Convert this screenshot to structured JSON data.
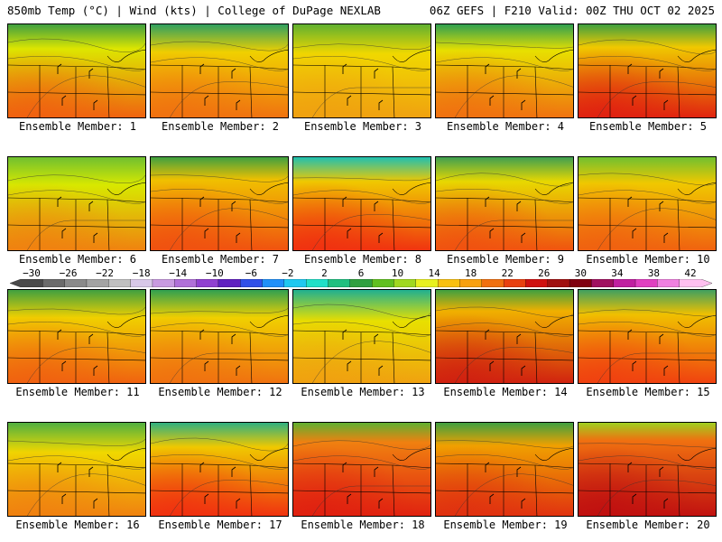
{
  "header": {
    "left": "850mb Temp (°C) | Wind (kts) | College of DuPage NEXLAB",
    "right": "06Z GEFS | F210 Valid: 00Z THU OCT 02 2025"
  },
  "colorbar": {
    "ticks": [
      "−30",
      "−26",
      "−22",
      "−18",
      "−14",
      "−10",
      "−6",
      "−2",
      "2",
      "6",
      "10",
      "14",
      "18",
      "22",
      "26",
      "30",
      "34",
      "38",
      "42"
    ],
    "colors": [
      "#4a4a4a",
      "#6b6b6b",
      "#8a8a8a",
      "#a3a3a3",
      "#c0c0c0",
      "#d8c8e8",
      "#c89ae0",
      "#b070d8",
      "#9040d0",
      "#6020c0",
      "#3050e8",
      "#2090f8",
      "#20c8f0",
      "#20e0c8",
      "#20c080",
      "#30a040",
      "#60c020",
      "#a0d820",
      "#e8f020",
      "#f8c010",
      "#f8a010",
      "#f07010",
      "#e84010",
      "#d01010",
      "#a01010",
      "#800010",
      "#a01060",
      "#c020a0",
      "#e040c0",
      "#f080e0",
      "#ffc0f0"
    ]
  },
  "members": [
    {
      "label": "Ensemble Member: 1",
      "warmth": 0.55,
      "bg": "#dde600",
      "hot": "#f06010",
      "cool": "#40a040"
    },
    {
      "label": "Ensemble Member: 2",
      "warmth": 0.45,
      "bg": "#f0d000",
      "hot": "#f07010",
      "cool": "#30a060"
    },
    {
      "label": "Ensemble Member: 3",
      "warmth": 0.4,
      "bg": "#f0d800",
      "hot": "#f0a010",
      "cool": "#60b030"
    },
    {
      "label": "Ensemble Member: 4",
      "warmth": 0.5,
      "bg": "#e8e000",
      "hot": "#f07010",
      "cool": "#30a050"
    },
    {
      "label": "Ensemble Member: 5",
      "warmth": 0.6,
      "bg": "#f0c800",
      "hot": "#e02010",
      "cool": "#40a040"
    },
    {
      "label": "Ensemble Member: 6",
      "warmth": 0.45,
      "bg": "#d8e800",
      "hot": "#f08010",
      "cool": "#70c030"
    },
    {
      "label": "Ensemble Member: 7",
      "warmth": 0.6,
      "bg": "#f0c000",
      "hot": "#f05010",
      "cool": "#40a040"
    },
    {
      "label": "Ensemble Member: 8",
      "warmth": 0.55,
      "bg": "#f0c800",
      "hot": "#f03010",
      "cool": "#20c0b0"
    },
    {
      "label": "Ensemble Member: 9",
      "warmth": 0.55,
      "bg": "#e8d800",
      "hot": "#f05010",
      "cool": "#40a050"
    },
    {
      "label": "Ensemble Member: 10",
      "warmth": 0.5,
      "bg": "#f0c800",
      "hot": "#f06010",
      "cool": "#70c030"
    },
    {
      "label": "Ensemble Member: 11",
      "warmth": 0.45,
      "bg": "#f0d000",
      "hot": "#f06010",
      "cool": "#40a040"
    },
    {
      "label": "Ensemble Member: 12",
      "warmth": 0.45,
      "bg": "#f0d000",
      "hot": "#f07010",
      "cool": "#30a050"
    },
    {
      "label": "Ensemble Member: 13",
      "warmth": 0.35,
      "bg": "#e8e000",
      "hot": "#f0a010",
      "cool": "#20b090"
    },
    {
      "label": "Ensemble Member: 14",
      "warmth": 0.65,
      "bg": "#f0b000",
      "hot": "#d02010",
      "cool": "#40a040"
    },
    {
      "label": "Ensemble Member: 15",
      "warmth": 0.55,
      "bg": "#f0c000",
      "hot": "#f04010",
      "cool": "#40a060"
    },
    {
      "label": "Ensemble Member: 16",
      "warmth": 0.4,
      "bg": "#f0d800",
      "hot": "#f08010",
      "cool": "#50b040"
    },
    {
      "label": "Ensemble Member: 17",
      "warmth": 0.55,
      "bg": "#f0c800",
      "hot": "#f03010",
      "cool": "#30b080"
    },
    {
      "label": "Ensemble Member: 18",
      "warmth": 0.7,
      "bg": "#f08010",
      "hot": "#e02010",
      "cool": "#60b030"
    },
    {
      "label": "Ensemble Member: 19",
      "warmth": 0.6,
      "bg": "#f0a000",
      "hot": "#e03010",
      "cool": "#40a040"
    },
    {
      "label": "Ensemble Member: 20",
      "warmth": 0.75,
      "bg": "#f07010",
      "hot": "#c01010",
      "cool": "#a0d020"
    }
  ]
}
